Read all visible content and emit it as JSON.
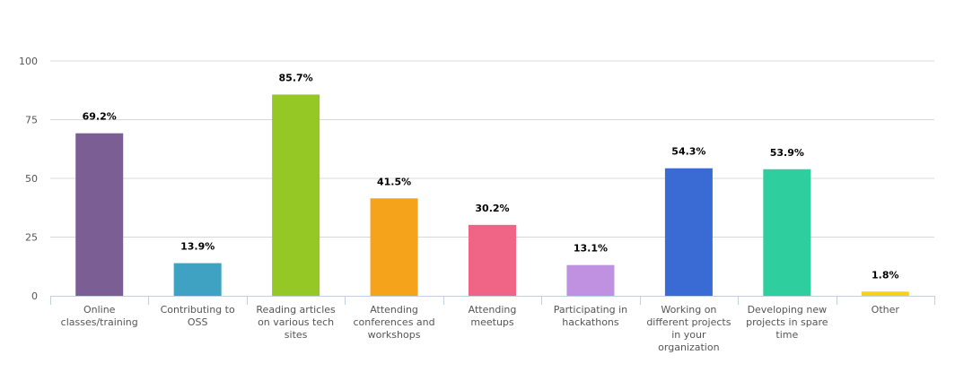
{
  "chart_data": {
    "type": "bar",
    "title": "",
    "xlabel": "",
    "ylabel": "",
    "ylim": [
      0,
      100
    ],
    "yticks": [
      0,
      25,
      50,
      75,
      100
    ],
    "grid": true,
    "categories": [
      [
        "Online",
        "classes/training"
      ],
      [
        "Contributing to",
        "OSS"
      ],
      [
        "Reading articles",
        "on various tech",
        "sites"
      ],
      [
        "Attending",
        "conferences and",
        "workshops"
      ],
      [
        "Attending",
        "meetups"
      ],
      [
        "Participating in",
        "hackathons"
      ],
      [
        "Working on",
        "different projects",
        "in your",
        "organization"
      ],
      [
        "Developing new",
        "projects in spare",
        "time"
      ],
      [
        "Other"
      ]
    ],
    "values": [
      69.2,
      13.9,
      85.7,
      41.5,
      30.2,
      13.1,
      54.3,
      53.9,
      1.8
    ],
    "data_labels": [
      "69.2%",
      "13.9%",
      "85.7%",
      "41.5%",
      "30.2%",
      "13.1%",
      "54.3%",
      "53.9%",
      "1.8%"
    ],
    "colors": [
      "#7b5e93",
      "#3fa2c2",
      "#95c825",
      "#f5a31a",
      "#f06485",
      "#bf91e0",
      "#3a6bd4",
      "#2ece9e",
      "#f7d218"
    ]
  }
}
